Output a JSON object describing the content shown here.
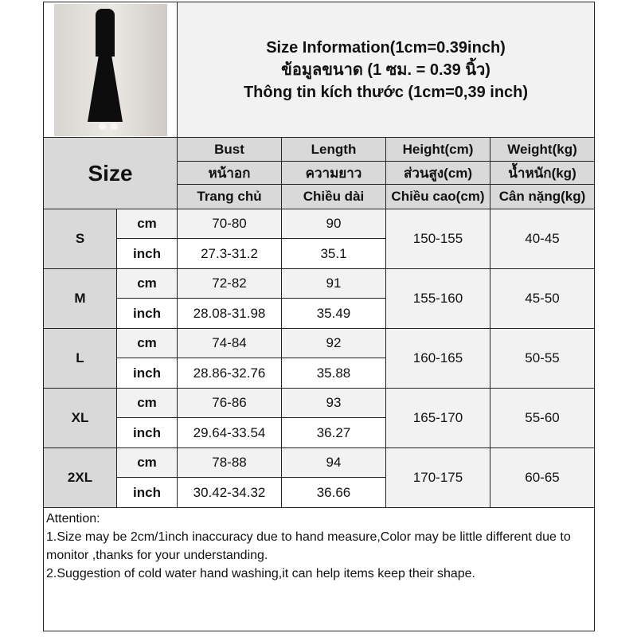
{
  "title_lines": [
    "Size Information(1cm=0.39inch)",
    "ข้อมูลขนาด (1 ซม. = 0.39 นิ้ว)",
    "Thông tin kích thước (1cm=0,39 inch)"
  ],
  "size_header": "Size",
  "columns": [
    {
      "en": "Bust",
      "th": "หน้าอก",
      "vi": "Trang chủ"
    },
    {
      "en": "Length",
      "th": "ความยาว",
      "vi": "Chiều dài"
    },
    {
      "en": "Height(cm)",
      "th": "ส่วนสูง(cm)",
      "vi": "Chiều cao(cm)"
    },
    {
      "en": "Weight(kg)",
      "th": "น้ำหนัก(kg)",
      "vi": "Cân nặng(kg)"
    }
  ],
  "units": {
    "cm": "cm",
    "inch": "inch"
  },
  "rows": [
    {
      "size": "S",
      "bust_cm": "70-80",
      "length_cm": "90",
      "bust_in": "27.3-31.2",
      "length_in": "35.1",
      "height": "150-155",
      "weight": "40-45"
    },
    {
      "size": "M",
      "bust_cm": "72-82",
      "length_cm": "91",
      "bust_in": "28.08-31.98",
      "length_in": "35.49",
      "height": "155-160",
      "weight": "45-50"
    },
    {
      "size": "L",
      "bust_cm": "74-84",
      "length_cm": "92",
      "bust_in": "28.86-32.76",
      "length_in": "35.88",
      "height": "160-165",
      "weight": "50-55"
    },
    {
      "size": "XL",
      "bust_cm": "76-86",
      "length_cm": "93",
      "bust_in": "29.64-33.54",
      "length_in": "36.27",
      "height": "165-170",
      "weight": "55-60"
    },
    {
      "size": "2XL",
      "bust_cm": "78-88",
      "length_cm": "94",
      "bust_in": "30.42-34.32",
      "length_in": "36.66",
      "height": "170-175",
      "weight": "60-65"
    }
  ],
  "notes": {
    "heading": "Attention:",
    "items": [
      "1.Size may be 2cm/1inch inaccuracy due to hand measure,Color may be little different due to monitor ,thanks for your understanding.",
      "2.Suggestion of cold water hand washing,it can help items keep their shape."
    ]
  }
}
